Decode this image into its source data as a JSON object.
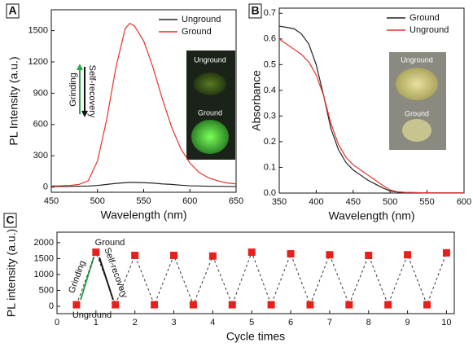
{
  "chart_data": [
    {
      "type": "line",
      "panel_label": "A",
      "x_label": "Wavelength (nm)",
      "y_label": "PL Intensity (a.u.)",
      "x": [
        450,
        460,
        470,
        480,
        490,
        500,
        510,
        520,
        530,
        535,
        540,
        550,
        560,
        570,
        580,
        590,
        600,
        610,
        620,
        630,
        640,
        650
      ],
      "series": [
        {
          "name": "Unground",
          "color": "#222222",
          "values": [
            5,
            5,
            6,
            8,
            10,
            15,
            25,
            35,
            42,
            45,
            45,
            42,
            38,
            30,
            25,
            18,
            12,
            10,
            8,
            7,
            6,
            5
          ]
        },
        {
          "name": "Ground",
          "color": "#e8322b",
          "values": [
            10,
            12,
            15,
            25,
            60,
            250,
            650,
            1150,
            1520,
            1570,
            1545,
            1400,
            1150,
            850,
            580,
            370,
            230,
            140,
            90,
            60,
            40,
            30
          ]
        }
      ],
      "xlim": [
        450,
        650
      ],
      "xticks": [
        450,
        500,
        550,
        600,
        650
      ],
      "ylim": [
        -50,
        1700
      ],
      "yticks": [
        0,
        300,
        600,
        900,
        1200,
        1500
      ],
      "legend": "upper right",
      "grid": false,
      "annotations": [
        "Grinding",
        "Self-recovery"
      ],
      "inset_labels": [
        "Unground",
        "Ground"
      ]
    },
    {
      "type": "line",
      "panel_label": "B",
      "x_label": "Wavelength (nm)",
      "y_label": "Absorbance",
      "x": [
        350,
        360,
        370,
        380,
        390,
        400,
        410,
        420,
        430,
        440,
        450,
        460,
        470,
        480,
        490,
        500,
        510,
        520,
        550,
        600
      ],
      "series": [
        {
          "name": "Ground",
          "color": "#222222",
          "values": [
            0.65,
            0.645,
            0.64,
            0.62,
            0.58,
            0.5,
            0.38,
            0.25,
            0.17,
            0.12,
            0.09,
            0.07,
            0.05,
            0.035,
            0.02,
            0.008,
            0.004,
            0.002,
            0.001,
            0.001
          ]
        },
        {
          "name": "Unground",
          "color": "#e8322b",
          "values": [
            0.6,
            0.58,
            0.56,
            0.54,
            0.51,
            0.46,
            0.38,
            0.27,
            0.19,
            0.14,
            0.11,
            0.09,
            0.07,
            0.05,
            0.03,
            0.012,
            0.005,
            0.003,
            0.001,
            0.001
          ]
        }
      ],
      "xlim": [
        350,
        600
      ],
      "xticks": [
        350,
        400,
        450,
        500,
        550,
        600
      ],
      "ylim": [
        0,
        0.72
      ],
      "yticks": [
        {
          "value": 0,
          "label": "0.0"
        },
        0.1,
        0.2,
        0.3,
        0.4,
        0.5,
        0.6,
        0.7
      ],
      "legend": "upper right",
      "grid": false,
      "inset_labels": [
        "Unground",
        "Ground"
      ]
    },
    {
      "type": "scatter",
      "panel_label": "C",
      "x_label": "Cycle times",
      "y_label": "PL intensity (a.u.)",
      "x": [
        0.5,
        1,
        1.5,
        2,
        2.5,
        3,
        3.5,
        4,
        4.5,
        5,
        5.5,
        6,
        6.5,
        7,
        7.5,
        8,
        8.5,
        9,
        9.5,
        10
      ],
      "values": [
        50,
        1700,
        50,
        1600,
        50,
        1600,
        50,
        1580,
        50,
        1700,
        50,
        1650,
        50,
        1620,
        50,
        1600,
        50,
        1620,
        50,
        1680
      ],
      "color": "#e8201c",
      "line_style": "dashed",
      "xlim": [
        0,
        10.2
      ],
      "xticks": [
        0,
        1,
        2,
        3,
        4,
        5,
        6,
        7,
        8,
        9,
        10
      ],
      "ylim": [
        -230,
        2330
      ],
      "yticks": [
        0,
        500,
        1000,
        1500,
        2000
      ],
      "grid": false,
      "annotations": [
        "Ground",
        "Unground",
        "Grinding",
        "Self-recovery"
      ]
    }
  ]
}
